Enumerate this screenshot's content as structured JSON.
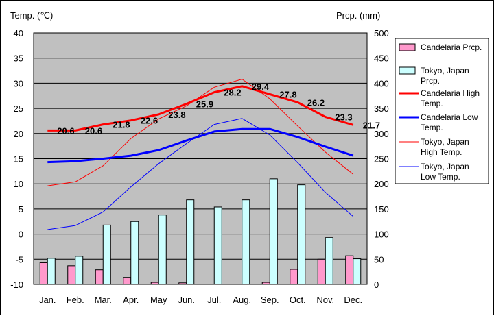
{
  "chart_data": {
    "type": "bar+line",
    "categories": [
      "Jan.",
      "Feb.",
      "Mar.",
      "Apr.",
      "May",
      "Jun.",
      "Jul.",
      "Aug.",
      "Sep.",
      "Oct.",
      "Nov.",
      "Dec."
    ],
    "ylabel_left": "Temp. (℃)",
    "ylabel_right": "Prcp. (mm)",
    "ylim_left": [
      -10,
      40
    ],
    "ylim_right": [
      0,
      500
    ],
    "yticks_left": [
      "40",
      "35",
      "30",
      "25",
      "20",
      "15",
      "10",
      "5",
      "0",
      "-5",
      "-10"
    ],
    "yticks_right": [
      "500",
      "450",
      "400",
      "350",
      "300",
      "250",
      "200",
      "150",
      "100",
      "50",
      "0"
    ],
    "grid": true,
    "legend_position": "right",
    "series": [
      {
        "name": "Candelaria Prcp.",
        "kind": "bar",
        "axis": "right",
        "color": "#ff99cc",
        "values": [
          43,
          37,
          29,
          14,
          4,
          3,
          0,
          0,
          4,
          30,
          50,
          57
        ]
      },
      {
        "name": "Tokyo, Japan Prcp.",
        "kind": "bar",
        "axis": "right",
        "color": "#ccffff",
        "values": [
          52,
          56,
          118,
          125,
          138,
          168,
          154,
          168,
          210,
          198,
          93,
          51
        ]
      },
      {
        "name": "Candelaria High Temp.",
        "kind": "line",
        "axis": "left",
        "color": "#ff0000",
        "width": 3,
        "values": [
          20.6,
          20.6,
          21.8,
          22.6,
          23.8,
          25.9,
          28.2,
          29.4,
          27.8,
          26.2,
          23.3,
          21.7
        ],
        "labels": [
          "20.6",
          "20.6",
          "21.8",
          "22.6",
          "23.8",
          "25.9",
          "28.2",
          "29.4",
          "27.8",
          "26.2",
          "23.3",
          "21.7"
        ]
      },
      {
        "name": "Candelaria Low Temp.",
        "kind": "line",
        "axis": "left",
        "color": "#0000ff",
        "width": 3,
        "values": [
          14.3,
          14.5,
          15.0,
          15.6,
          16.7,
          18.6,
          20.4,
          20.9,
          20.9,
          19.3,
          17.4,
          15.6
        ]
      },
      {
        "name": "Tokyo, Japan High Temp.",
        "kind": "line",
        "axis": "left",
        "color": "#ff0000",
        "width": 1,
        "values": [
          9.6,
          10.4,
          13.6,
          19.0,
          22.9,
          25.5,
          29.2,
          30.8,
          26.9,
          21.5,
          16.3,
          11.9
        ]
      },
      {
        "name": "Tokyo, Japan Low Temp.",
        "kind": "line",
        "axis": "left",
        "color": "#0000ff",
        "width": 1,
        "values": [
          0.9,
          1.7,
          4.4,
          9.4,
          14.0,
          18.0,
          21.8,
          23.0,
          19.7,
          14.2,
          8.3,
          3.5
        ]
      }
    ],
    "legend_lines": [
      [
        "Candelaria Prcp."
      ],
      [
        "Tokyo, Japan",
        "Prcp."
      ],
      [
        "Candelaria High",
        "Temp."
      ],
      [
        "Candelaria Low",
        "Temp."
      ],
      [
        "Tokyo, Japan",
        "High Temp."
      ],
      [
        "Tokyo, Japan",
        "Low Temp."
      ]
    ]
  }
}
